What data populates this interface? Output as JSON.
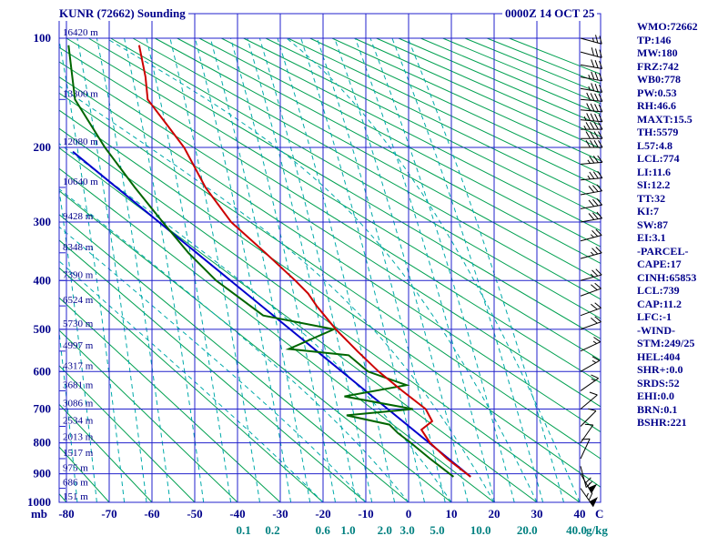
{
  "header": {
    "title": "KUNR (72662) Sounding",
    "datetime": "0000Z 14 OCT 25"
  },
  "indices": [
    "WMO:72662",
    "TP:146",
    "MW:180",
    "FRZ:742",
    "WB0:778",
    "PW:0.53",
    "RH:46.6",
    "MAXT:15.5",
    "TH:5579",
    "L57:4.8",
    "LCL:774",
    "LI:11.6",
    "SI:12.2",
    "TT:32",
    "KI:7",
    "SW:87",
    "EI:3.1",
    "-PARCEL-",
    "CAPE:17",
    "CINH:65853",
    "LCL:739",
    "CAP:11.2",
    "LFC:-1",
    "-WIND-",
    "STM:249/25",
    "HEL:404",
    "SHR+:0.0",
    "SRDS:52",
    "EHI:0.0",
    "BRN:0.1",
    "BSHR:221"
  ],
  "axes": {
    "pressure_unit": "mb",
    "temp_unit": "C",
    "mixing_unit": "g/kg",
    "pressure_ticks": [
      100,
      200,
      300,
      400,
      500,
      600,
      700,
      800,
      900,
      1000
    ],
    "temp_ticks": [
      -80,
      -70,
      -60,
      -50,
      -40,
      -30,
      -20,
      -10,
      0,
      10,
      20,
      30,
      40
    ],
    "mixing_labels": [
      {
        "value": 0.1,
        "label": "0.1"
      },
      {
        "value": 0.2,
        "label": "0.2"
      },
      {
        "value": 0.6,
        "label": "0.6"
      },
      {
        "value": 1.0,
        "label": "1.0"
      },
      {
        "value": 2.0,
        "label": "2.0"
      },
      {
        "value": 3.0,
        "label": "3.0"
      },
      {
        "value": 5.0,
        "label": "5.0"
      },
      {
        "value": 10.0,
        "label": "10.0"
      },
      {
        "value": 20.0,
        "label": "20.0"
      },
      {
        "value": 40.0,
        "label": "40.0"
      }
    ]
  },
  "height_labels": [
    {
      "p": 100,
      "label": "16420 m"
    },
    {
      "p": 150,
      "label": "13300 m"
    },
    {
      "p": 200,
      "label": "12080 m"
    },
    {
      "p": 250,
      "label": "10640 m"
    },
    {
      "p": 300,
      "label": "9428 m"
    },
    {
      "p": 350,
      "label": "8348 m"
    },
    {
      "p": 400,
      "label": "7390 m"
    },
    {
      "p": 450,
      "label": "6524 m"
    },
    {
      "p": 500,
      "label": "5730 m"
    },
    {
      "p": 550,
      "label": "4997 m"
    },
    {
      "p": 600,
      "label": "4317 m"
    },
    {
      "p": 650,
      "label": "3681 m"
    },
    {
      "p": 700,
      "label": "3086 m"
    },
    {
      "p": 750,
      "label": "2534 m"
    },
    {
      "p": 800,
      "label": "2013 m"
    },
    {
      "p": 850,
      "label": "1517 m"
    },
    {
      "p": 900,
      "label": "975 m"
    },
    {
      "p": 950,
      "label": "686 m"
    },
    {
      "p": 1000,
      "label": "151 m"
    }
  ],
  "chart_data": {
    "type": "sounding",
    "diagram": "stuve",
    "station": "KUNR (72662)",
    "valid": "0000Z 14 OCT 25",
    "pressure_range": [
      100,
      1000
    ],
    "temp_range": [
      -80,
      40
    ],
    "temperature_profile": [
      {
        "p": 910,
        "t": 14.5
      },
      {
        "p": 850,
        "t": 9
      },
      {
        "p": 800,
        "t": 5
      },
      {
        "p": 760,
        "t": 3
      },
      {
        "p": 735,
        "t": 5.5
      },
      {
        "p": 700,
        "t": 4
      },
      {
        "p": 650,
        "t": -1.5
      },
      {
        "p": 600,
        "t": -7
      },
      {
        "p": 550,
        "t": -12
      },
      {
        "p": 500,
        "t": -17
      },
      {
        "p": 450,
        "t": -21.5
      },
      {
        "p": 425,
        "t": -23.5
      },
      {
        "p": 400,
        "t": -26.5
      },
      {
        "p": 350,
        "t": -33.5
      },
      {
        "p": 300,
        "t": -41.5
      },
      {
        "p": 250,
        "t": -47.5
      },
      {
        "p": 200,
        "t": -52.5
      },
      {
        "p": 175,
        "t": -56.5
      },
      {
        "p": 150,
        "t": -61
      },
      {
        "p": 130,
        "t": -61.5
      },
      {
        "p": 105,
        "t": -63
      }
    ],
    "dewpoint_profile": [
      {
        "p": 910,
        "t": 10.5
      },
      {
        "p": 850,
        "t": 5
      },
      {
        "p": 800,
        "t": 0.5
      },
      {
        "p": 770,
        "t": -2.5
      },
      {
        "p": 745,
        "t": -4.5
      },
      {
        "p": 718,
        "t": -14.5
      },
      {
        "p": 700,
        "t": 1
      },
      {
        "p": 665,
        "t": -15
      },
      {
        "p": 635,
        "t": -0.5
      },
      {
        "p": 600,
        "t": -9.5
      },
      {
        "p": 560,
        "t": -14
      },
      {
        "p": 545,
        "t": -28
      },
      {
        "p": 500,
        "t": -17.5
      },
      {
        "p": 470,
        "t": -34
      },
      {
        "p": 400,
        "t": -45
      },
      {
        "p": 350,
        "t": -51.5
      },
      {
        "p": 300,
        "t": -57.5
      },
      {
        "p": 250,
        "t": -64
      },
      {
        "p": 200,
        "t": -71
      },
      {
        "p": 150,
        "t": -78
      },
      {
        "p": 105,
        "t": -79.5
      }
    ],
    "parcel_trace": [
      {
        "p": 910,
        "t": 14.5
      },
      {
        "p": 205,
        "t": -78.5
      }
    ],
    "mixing_ratio_lines": [
      0.001,
      0.002,
      0.005,
      0.01,
      0.02,
      0.05,
      0.1,
      0.2,
      0.4,
      0.6,
      1,
      1.5,
      2,
      3,
      5,
      7,
      10,
      15,
      20,
      30,
      40
    ],
    "moist_adiabats": [
      -20,
      -10,
      0,
      10,
      20,
      30,
      40
    ],
    "dry_adiabat_theta_min": -80,
    "dry_adiabat_theta_max": 300,
    "dry_adiabat_theta_step": 10,
    "winds": [
      {
        "p": 100,
        "dir": 285,
        "spd": 25
      },
      {
        "p": 110,
        "dir": 285,
        "spd": 30
      },
      {
        "p": 120,
        "dir": 280,
        "spd": 30
      },
      {
        "p": 130,
        "dir": 280,
        "spd": 35
      },
      {
        "p": 140,
        "dir": 280,
        "spd": 35
      },
      {
        "p": 150,
        "dir": 275,
        "spd": 40
      },
      {
        "p": 160,
        "dir": 275,
        "spd": 40
      },
      {
        "p": 170,
        "dir": 275,
        "spd": 45
      },
      {
        "p": 180,
        "dir": 270,
        "spd": 45
      },
      {
        "p": 190,
        "dir": 270,
        "spd": 40
      },
      {
        "p": 200,
        "dir": 270,
        "spd": 40
      },
      {
        "p": 220,
        "dir": 265,
        "spd": 35
      },
      {
        "p": 240,
        "dir": 265,
        "spd": 35
      },
      {
        "p": 260,
        "dir": 260,
        "spd": 30
      },
      {
        "p": 280,
        "dir": 260,
        "spd": 30
      },
      {
        "p": 300,
        "dir": 260,
        "spd": 30
      },
      {
        "p": 330,
        "dir": 255,
        "spd": 25
      },
      {
        "p": 360,
        "dir": 255,
        "spd": 25
      },
      {
        "p": 400,
        "dir": 255,
        "spd": 25
      },
      {
        "p": 430,
        "dir": 250,
        "spd": 20
      },
      {
        "p": 470,
        "dir": 250,
        "spd": 20
      },
      {
        "p": 500,
        "dir": 250,
        "spd": 20
      },
      {
        "p": 550,
        "dir": 245,
        "spd": 15
      },
      {
        "p": 600,
        "dir": 240,
        "spd": 15
      },
      {
        "p": 650,
        "dir": 235,
        "spd": 15
      },
      {
        "p": 700,
        "dir": 230,
        "spd": 10
      },
      {
        "p": 750,
        "dir": 225,
        "spd": 10
      },
      {
        "p": 800,
        "dir": 215,
        "spd": 10
      },
      {
        "p": 850,
        "dir": 205,
        "spd": 10
      },
      {
        "p": 875,
        "dir": 345,
        "spd": 20
      },
      {
        "p": 900,
        "dir": 330,
        "spd": 55
      },
      {
        "p": 950,
        "dir": 325,
        "spd": 65
      }
    ]
  },
  "colors": {
    "text": "#00008B",
    "grid": "#2222CC",
    "dry_adiabat": "#00A050",
    "mixing_ratio": "#00AAAA",
    "moist_adiabat": "#00AAAA",
    "temperature": "#CC0000",
    "dewpoint": "#006600",
    "parcel": "#0000CC",
    "wind_barb": "#000000",
    "mixing_label": "#008080"
  }
}
